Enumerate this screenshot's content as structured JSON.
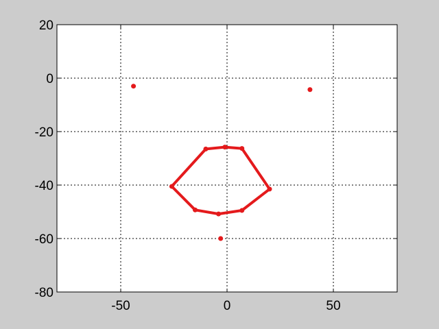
{
  "chart_data": {
    "type": "scatter",
    "xlim": [
      -80,
      80
    ],
    "ylim": [
      -80,
      20
    ],
    "xticks": [
      -50,
      0,
      50
    ],
    "yticks": [
      20,
      0,
      -20,
      -40,
      -60,
      -80
    ],
    "xtick_labels": [
      "-50",
      "0",
      "50"
    ],
    "ytick_labels": [
      "20",
      "0",
      "-20",
      "-40",
      "-60",
      "-80"
    ],
    "grid": true,
    "grid_style": "dotted",
    "series": [
      {
        "kind": "polygon",
        "color": "#e41a1c",
        "points": [
          [
            -26,
            -40.5
          ],
          [
            -10,
            -26.5
          ],
          [
            -1,
            -25.8
          ],
          [
            7,
            -26.3
          ],
          [
            20,
            -41.5
          ],
          [
            7,
            -49.5
          ],
          [
            -4,
            -50.8
          ],
          [
            -15,
            -49.3
          ]
        ]
      },
      {
        "kind": "points",
        "color": "#e41a1c",
        "points": [
          [
            -44,
            -3
          ],
          [
            39,
            -4.3
          ],
          [
            -3,
            -60
          ]
        ]
      }
    ]
  }
}
